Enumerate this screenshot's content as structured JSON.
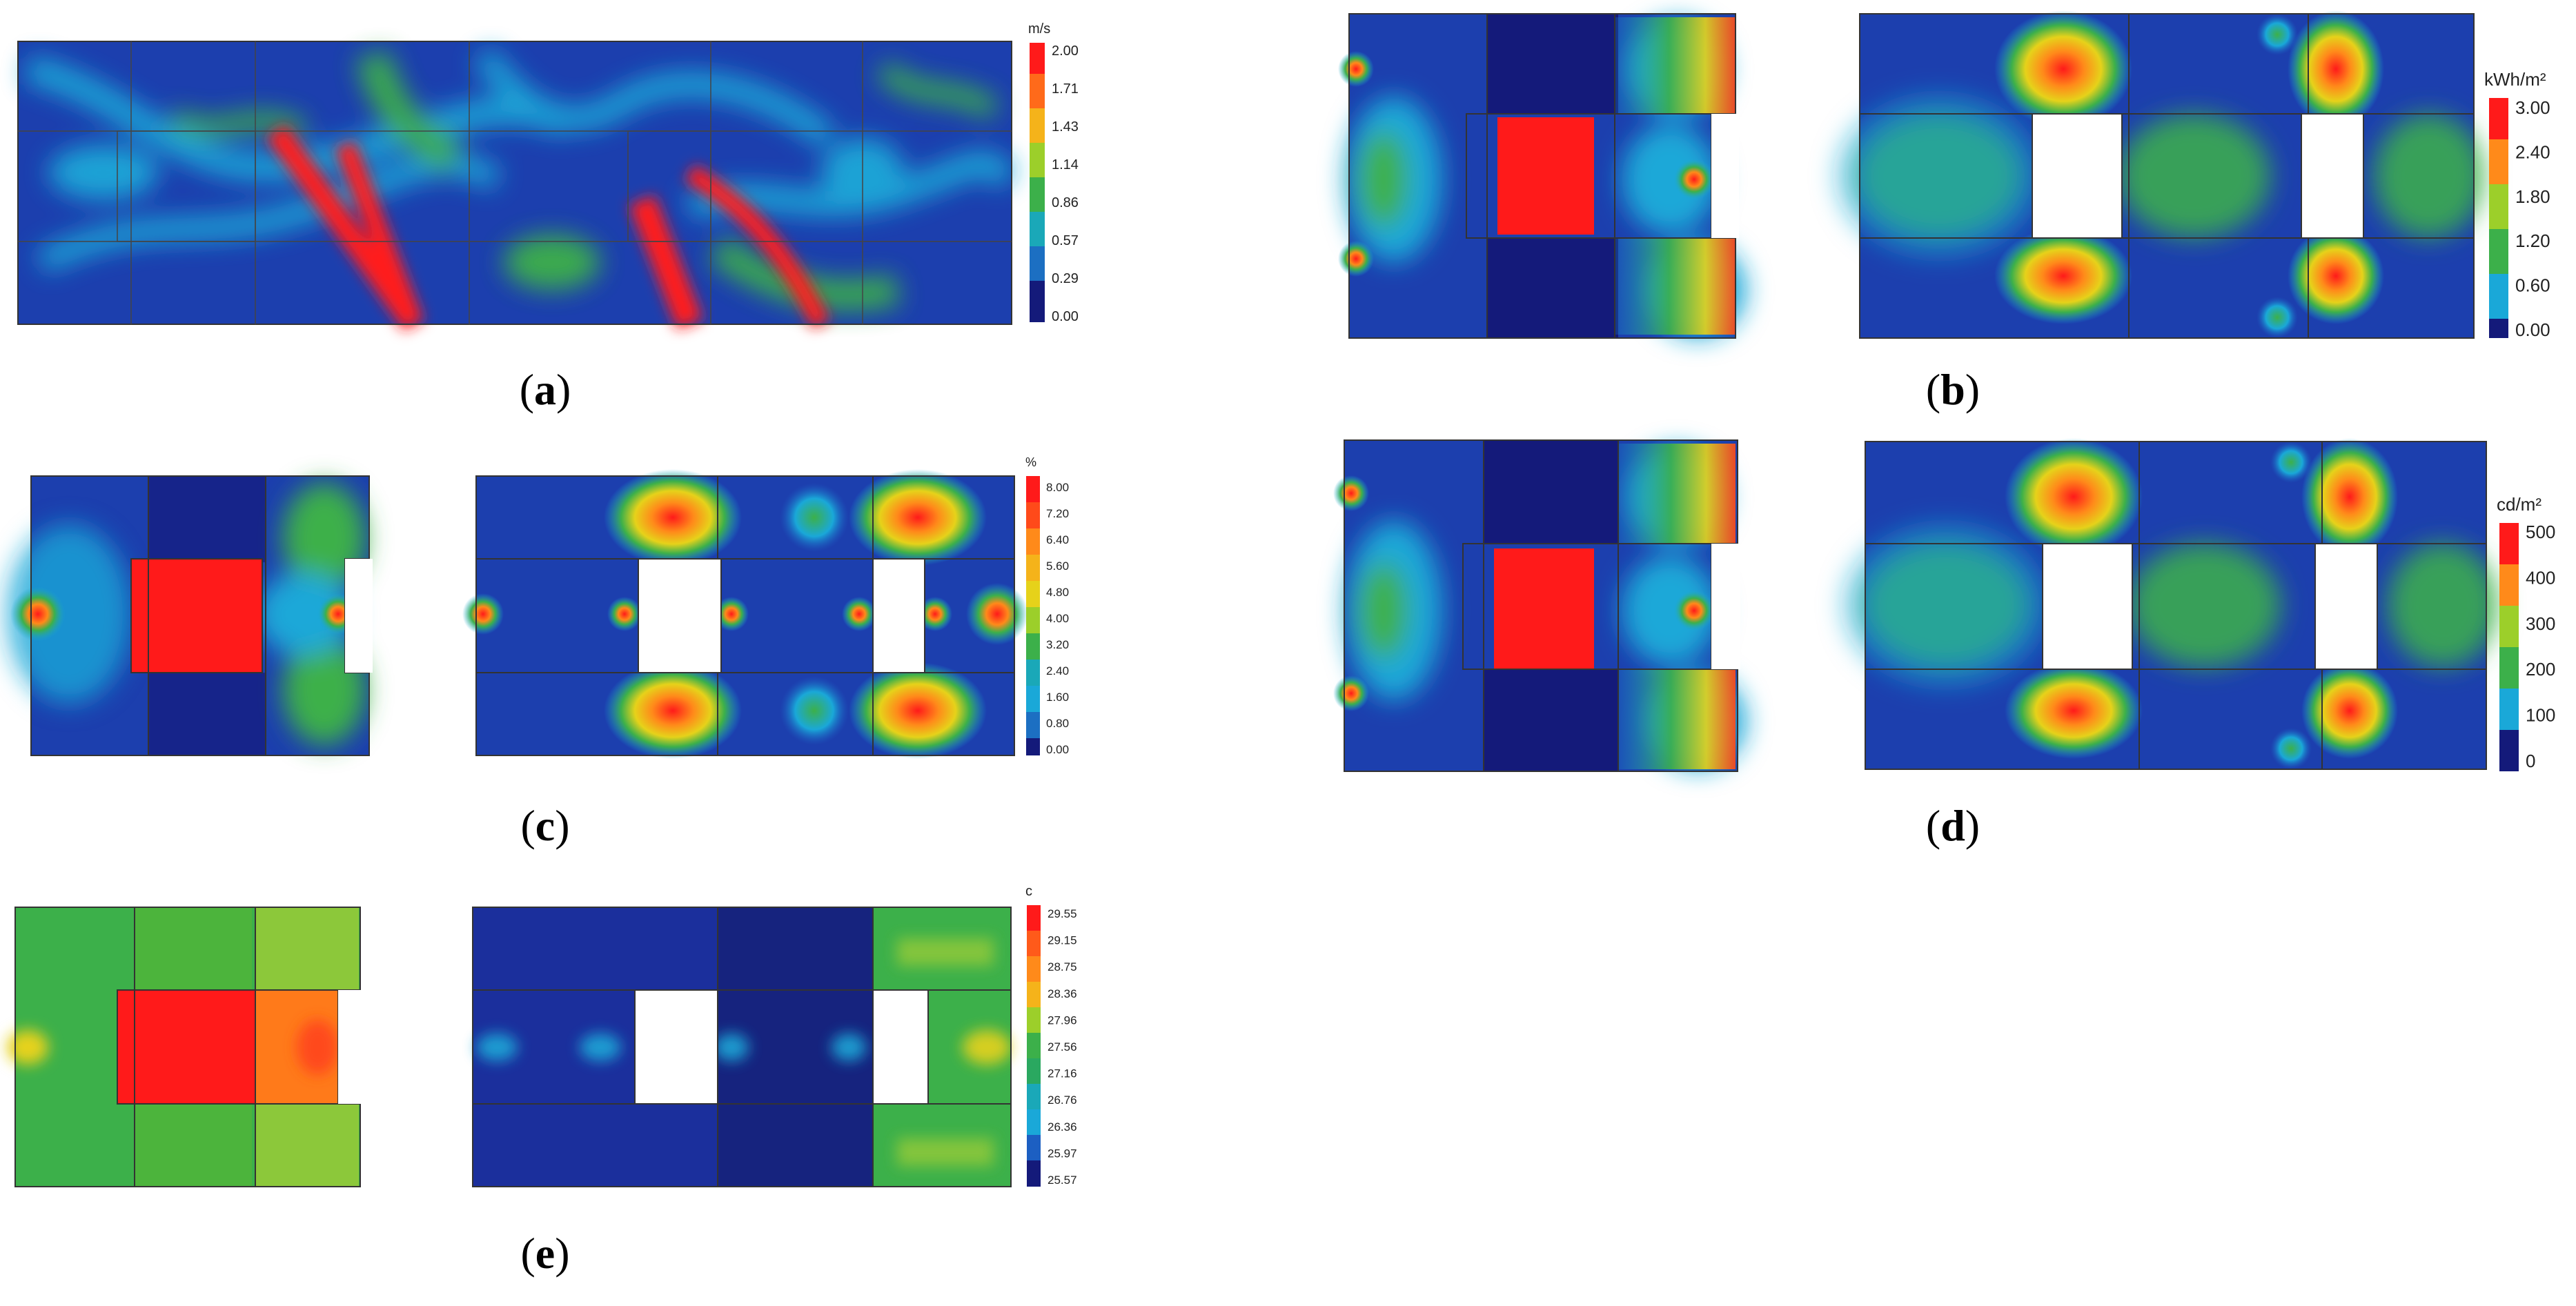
{
  "panels": [
    {
      "id": "a",
      "label": "a",
      "unit": "m/s",
      "ticks": [
        "2.00",
        "1.71",
        "1.43",
        "1.14",
        "0.86",
        "0.57",
        "0.29",
        "0.00"
      ]
    },
    {
      "id": "b",
      "label": "b",
      "unit": "kWh/m²",
      "ticks": [
        "3.00",
        "2.40",
        "1.80",
        "1.20",
        "0.60",
        "0.00"
      ]
    },
    {
      "id": "c",
      "label": "c",
      "unit": "%",
      "ticks": [
        "8.00",
        "7.20",
        "6.40",
        "5.60",
        "4.80",
        "4.00",
        "3.20",
        "2.40",
        "1.60",
        "0.80",
        "0.00"
      ]
    },
    {
      "id": "d",
      "label": "d",
      "unit": "cd/m²",
      "ticks": [
        "500",
        "400",
        "300",
        "200",
        "100",
        "0"
      ]
    },
    {
      "id": "e",
      "label": "e",
      "unit": "c",
      "ticks": [
        "29.55",
        "29.15",
        "28.75",
        "28.36",
        "27.96",
        "27.56",
        "27.16",
        "26.76",
        "26.36",
        "25.97",
        "25.57"
      ]
    }
  ],
  "colors": {
    "red": "#ff1a1a",
    "orange": "#ff8a1a",
    "yellow": "#e6d21a",
    "ygreen": "#9ccf2a",
    "green": "#3cb04a",
    "cyan": "#1aa8d8",
    "blue": "#1c5fc2",
    "navy": "#141a7a",
    "deep": "#1b2f9c"
  }
}
